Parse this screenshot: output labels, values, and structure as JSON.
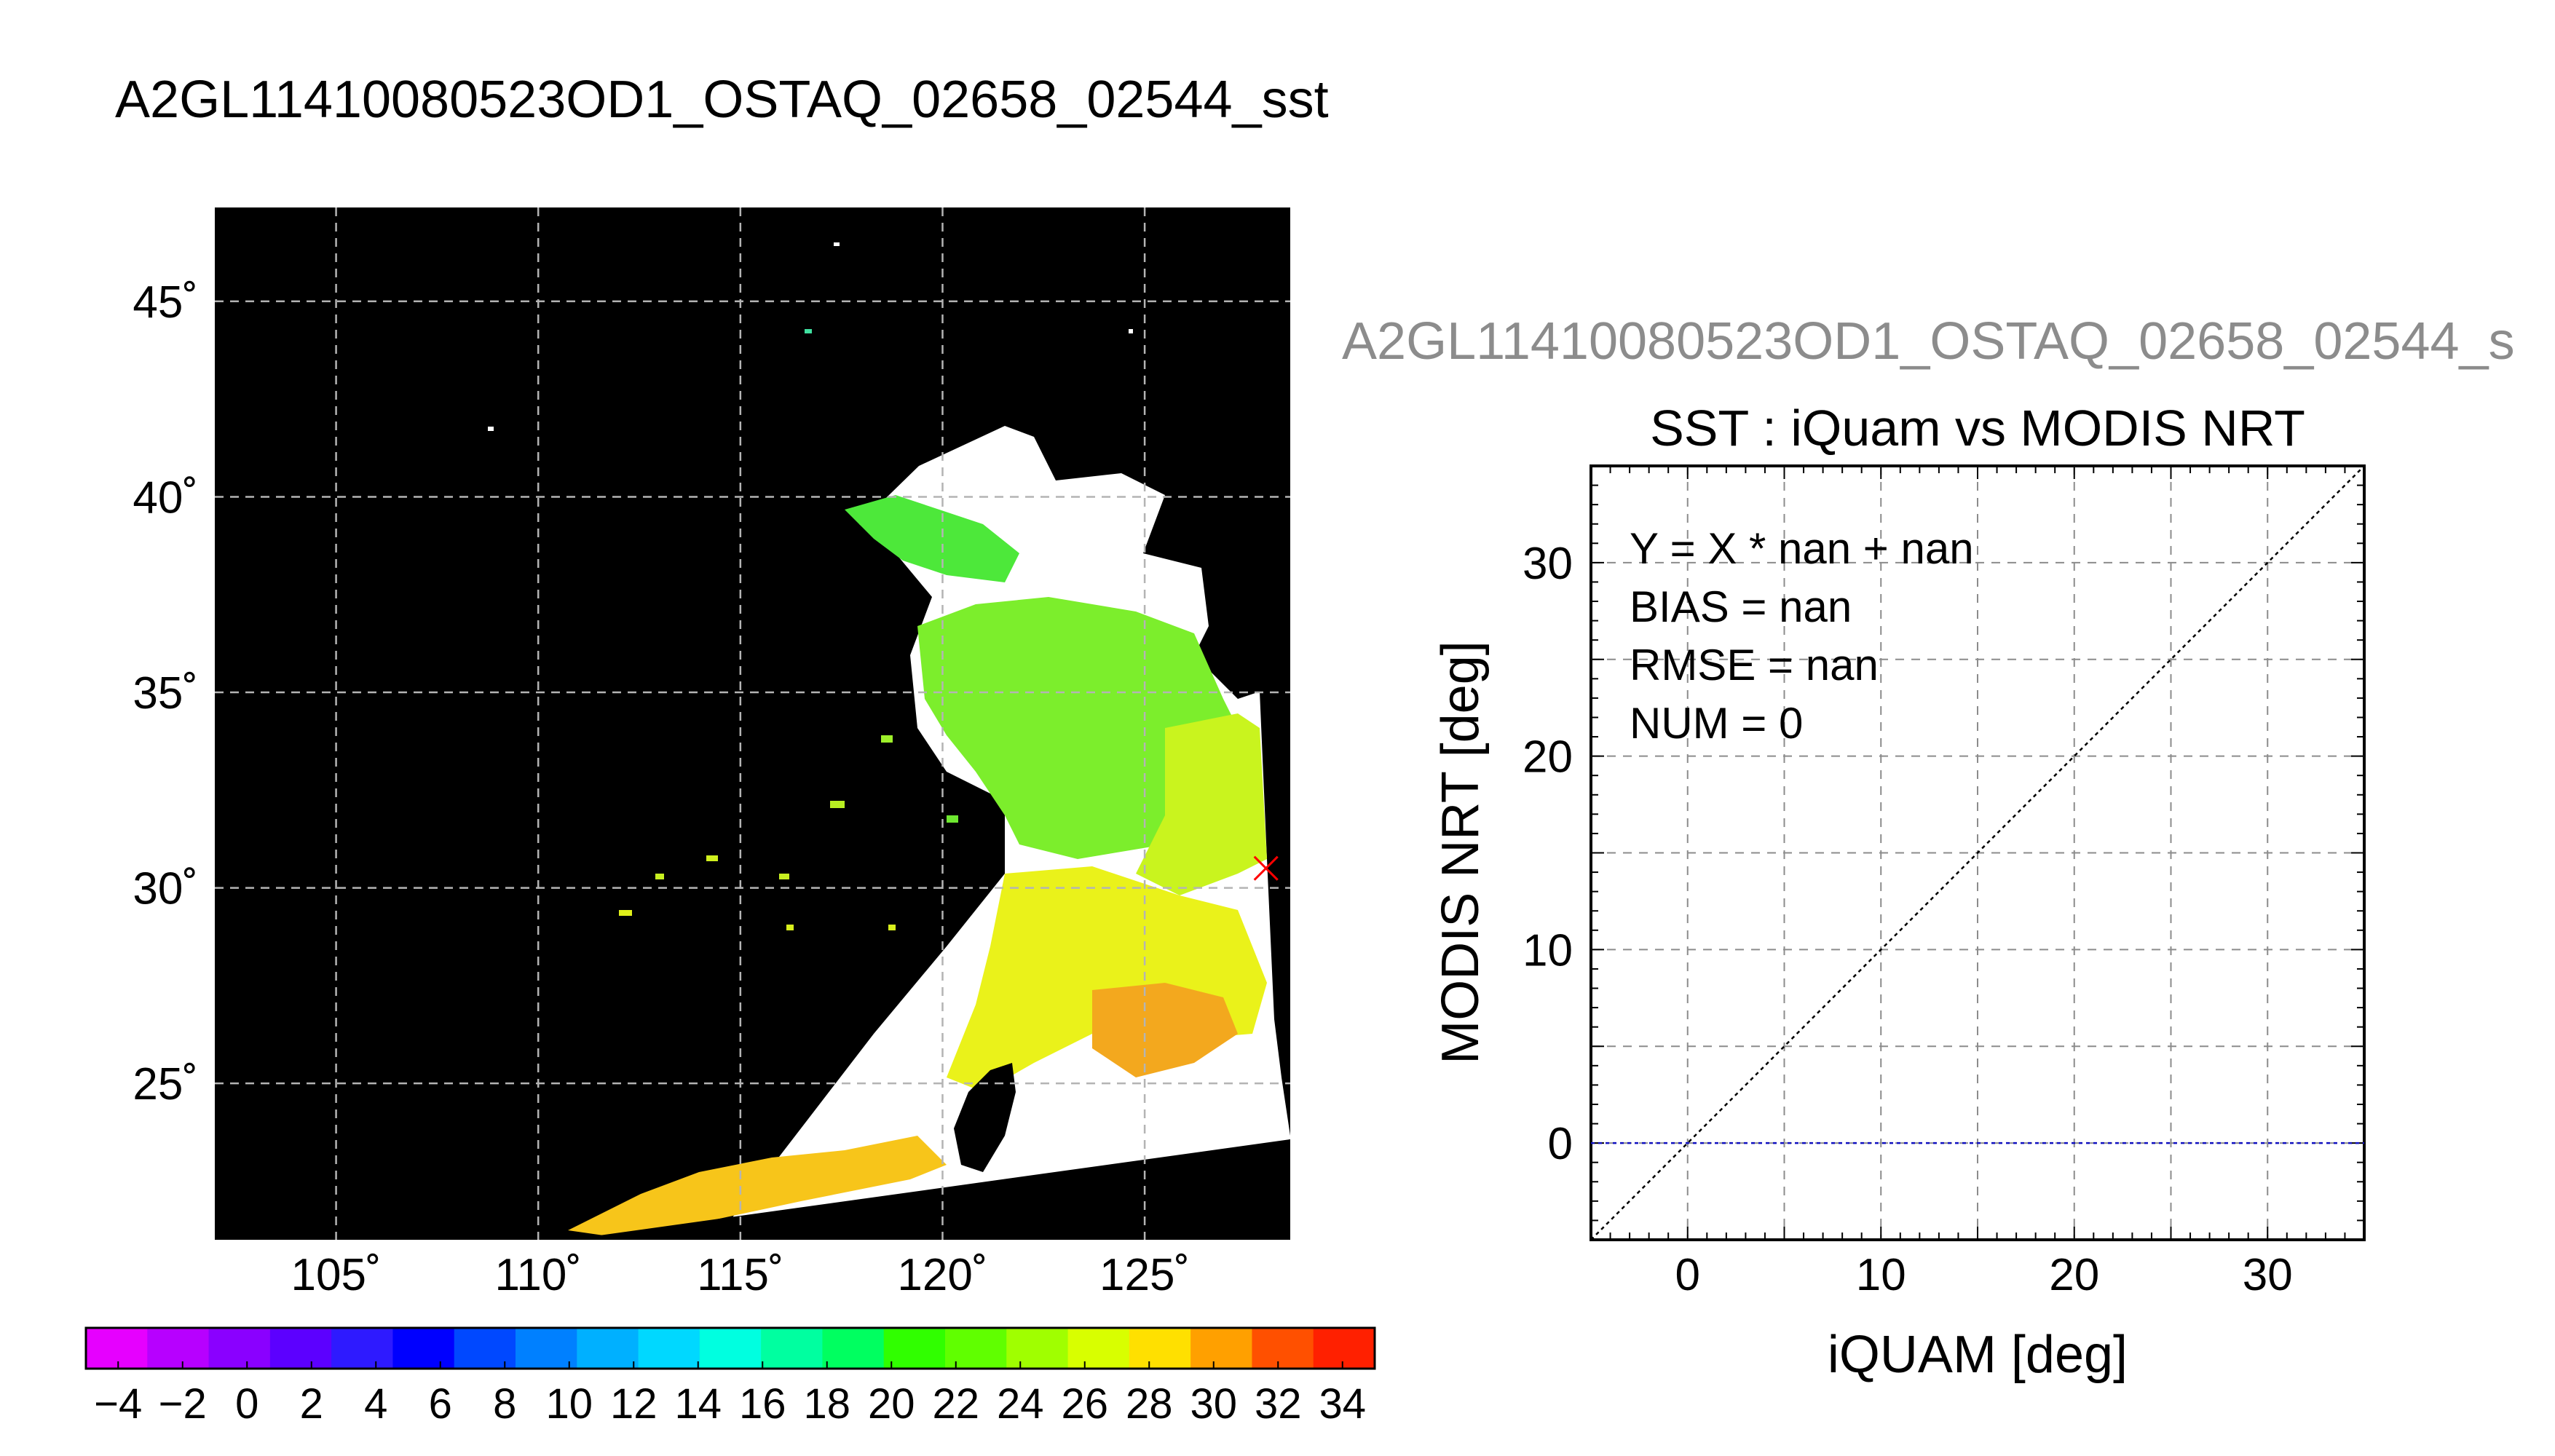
{
  "title": "A2GL11410080523OD1_OSTAQ_02658_02544_sst",
  "scatter_header": "A2GL11410080523OD1_OSTAQ_02658_02544_s",
  "map": {
    "lon_ticks": [
      "105˚",
      "110˚",
      "115˚",
      "120˚",
      "125˚"
    ],
    "lat_ticks": [
      "45˚",
      "40˚",
      "35˚",
      "30˚",
      "25˚"
    ],
    "lon_values": [
      105,
      110,
      115,
      120,
      125
    ],
    "lat_values": [
      45,
      40,
      35,
      30,
      25
    ],
    "lon_range": [
      102,
      128.6
    ],
    "lat_range": [
      21,
      47.4
    ],
    "marker_lonlat": [
      128,
      30.5
    ],
    "background_color": "#000000",
    "grid": true
  },
  "colorbar": {
    "tick_labels": [
      "−4",
      "−2",
      "0",
      "2",
      "4",
      "6",
      "8",
      "10",
      "12",
      "14",
      "16",
      "18",
      "20",
      "22",
      "24",
      "26",
      "28",
      "30",
      "32",
      "34"
    ],
    "range": [
      -5,
      35
    ],
    "colors": [
      "#e600ff",
      "#b700ff",
      "#8a00ff",
      "#5c00ff",
      "#2e1aff",
      "#0000ff",
      "#0048ff",
      "#0080ff",
      "#00b0ff",
      "#00d8ff",
      "#00ffe0",
      "#00ffa0",
      "#00ff60",
      "#30ff00",
      "#60ff00",
      "#a0ff00",
      "#d8ff00",
      "#ffe000",
      "#ffa000",
      "#ff5000",
      "#ff2000"
    ]
  },
  "chart_data": {
    "type": "scatter",
    "title": "SST : iQuam vs MODIS NRT",
    "xlabel": "iQUAM [deg]",
    "ylabel": "MODIS NRT [deg]",
    "xlim": [
      -5,
      35
    ],
    "ylim": [
      -5,
      35
    ],
    "x_ticks": [
      0,
      10,
      20,
      30
    ],
    "y_ticks": [
      0,
      10,
      20,
      30
    ],
    "grid": true,
    "points": [],
    "reference_line": "y = x",
    "zero_line_y": 0,
    "annotations": [
      "Y = X * nan + nan",
      "BIAS = nan",
      "RMSE = nan",
      "NUM = 0"
    ]
  }
}
